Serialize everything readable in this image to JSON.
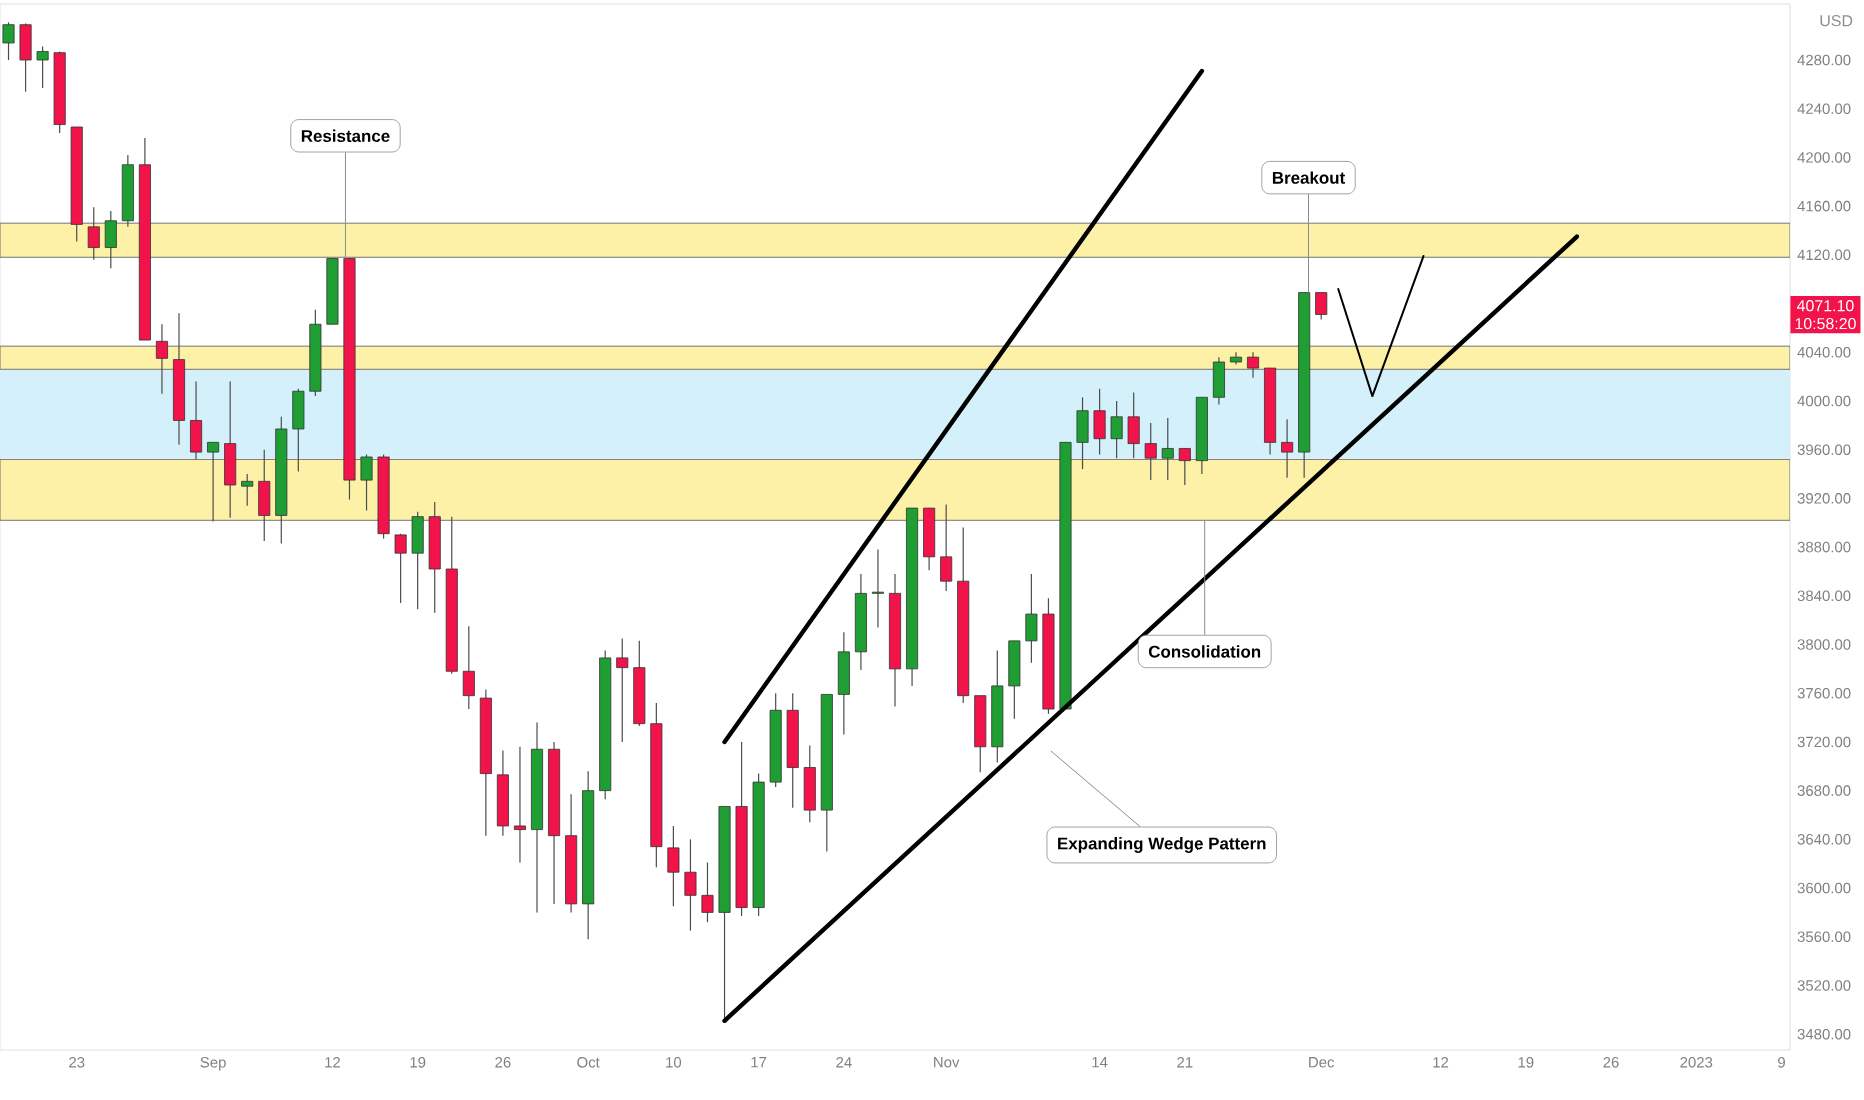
{
  "chart_data": {
    "type": "candlestick",
    "ylabel": "USD",
    "categories": [
      null,
      null,
      null,
      null,
      "23",
      null,
      null,
      null,
      null,
      null,
      null,
      null,
      "Sep",
      null,
      null,
      null,
      null,
      null,
      null,
      "12",
      null,
      null,
      null,
      null,
      "19",
      null,
      null,
      null,
      null,
      "26",
      null,
      null,
      null,
      null,
      "Oct",
      null,
      null,
      null,
      null,
      "10",
      null,
      null,
      null,
      null,
      "17",
      null,
      null,
      null,
      null,
      "24",
      null,
      null,
      null,
      null,
      null,
      "Nov",
      null,
      null,
      null,
      null,
      null,
      null,
      null,
      null,
      "14",
      null,
      null,
      null,
      null,
      "21",
      null,
      null,
      null,
      null,
      null,
      null,
      null,
      "Dec",
      null,
      null,
      null,
      null,
      null,
      null,
      "12",
      null,
      null,
      null,
      null,
      "19",
      null,
      null,
      null,
      null,
      "26",
      null,
      null,
      null,
      null,
      "2023",
      null,
      null,
      null,
      null,
      "9"
    ],
    "ohlc": [
      [
        4294,
        4311,
        4280,
        4309
      ],
      [
        4309,
        4310,
        4254,
        4280
      ],
      [
        4280,
        4291,
        4257,
        4287
      ],
      [
        4286,
        4287,
        4220,
        4227
      ],
      [
        4225,
        4225,
        4131,
        4145
      ],
      [
        4143,
        4159,
        4116,
        4126
      ],
      [
        4126,
        4156,
        4109,
        4148
      ],
      [
        4148,
        4202,
        4143,
        4194
      ],
      [
        4194,
        4216,
        4050,
        4050
      ],
      [
        4049,
        4063,
        4006,
        4035
      ],
      [
        4034,
        4072,
        3964,
        3984
      ],
      [
        3984,
        4016,
        3952,
        3958
      ],
      [
        3958,
        3966,
        3901,
        3966
      ],
      [
        3965,
        4016,
        3904,
        3931
      ],
      [
        3930,
        3940,
        3914,
        3934
      ],
      [
        3934,
        3960,
        3885,
        3906
      ],
      [
        3906,
        3987,
        3883,
        3977
      ],
      [
        3977,
        4010,
        3942,
        4008
      ],
      [
        4008,
        4075,
        4004,
        4063
      ],
      [
        4063,
        4117,
        4063,
        4117
      ],
      [
        4117,
        4117,
        3919,
        3935
      ],
      [
        3935,
        3956,
        3910,
        3954
      ],
      [
        3954,
        3956,
        3887,
        3891
      ],
      [
        3890,
        3891,
        3834,
        3875
      ],
      [
        3875,
        3909,
        3829,
        3905
      ],
      [
        3905,
        3917,
        3826,
        3862
      ],
      [
        3862,
        3905,
        3776,
        3778
      ],
      [
        3778,
        3815,
        3747,
        3758
      ],
      [
        3756,
        3763,
        3643,
        3694
      ],
      [
        3693,
        3713,
        3643,
        3651
      ],
      [
        3651,
        3716,
        3621,
        3648
      ],
      [
        3648,
        3736,
        3580,
        3714
      ],
      [
        3714,
        3720,
        3587,
        3643
      ],
      [
        3643,
        3677,
        3580,
        3587
      ],
      [
        3587,
        3696,
        3558,
        3680
      ],
      [
        3680,
        3795,
        3673,
        3789
      ],
      [
        3789,
        3805,
        3720,
        3781
      ],
      [
        3781,
        3803,
        3733,
        3735
      ],
      [
        3735,
        3752,
        3617,
        3634
      ],
      [
        3633,
        3651,
        3585,
        3613
      ],
      [
        3613,
        3640,
        3565,
        3594
      ],
      [
        3594,
        3621,
        3572,
        3580
      ],
      [
        3580,
        3667,
        3491,
        3667
      ],
      [
        3667,
        3720,
        3577,
        3584
      ],
      [
        3584,
        3694,
        3577,
        3687
      ],
      [
        3687,
        3760,
        3683,
        3746
      ],
      [
        3746,
        3760,
        3666,
        3699
      ],
      [
        3699,
        3717,
        3654,
        3664
      ],
      [
        3664,
        3759,
        3630,
        3759
      ],
      [
        3759,
        3810,
        3726,
        3794
      ],
      [
        3794,
        3858,
        3779,
        3842
      ],
      [
        3842,
        3878,
        3814,
        3843
      ],
      [
        3842,
        3858,
        3749,
        3780
      ],
      [
        3780,
        3912,
        3766,
        3912
      ],
      [
        3912,
        3912,
        3861,
        3872
      ],
      [
        3872,
        3915,
        3844,
        3852
      ],
      [
        3852,
        3896,
        3752,
        3758
      ],
      [
        3758,
        3758,
        3695,
        3716
      ],
      [
        3716,
        3795,
        3703,
        3766
      ],
      [
        3766,
        3803,
        3739,
        3803
      ],
      [
        3803,
        3858,
        3785,
        3825
      ],
      [
        3825,
        3838,
        3743,
        3747
      ],
      [
        3747,
        3966,
        3747,
        3966
      ],
      [
        3966,
        4003,
        3944,
        3992
      ],
      [
        3992,
        4010,
        3956,
        3969
      ],
      [
        3969,
        4000,
        3953,
        3987
      ],
      [
        3987,
        4007,
        3953,
        3965
      ],
      [
        3965,
        3982,
        3935,
        3953
      ],
      [
        3953,
        3986,
        3935,
        3961
      ],
      [
        3961,
        3961,
        3931,
        3951
      ],
      [
        3951,
        4003,
        3940,
        4003
      ],
      [
        4003,
        4036,
        3997,
        4032
      ],
      [
        4032,
        4040,
        4030,
        4036
      ],
      [
        4036,
        4040,
        4019,
        4027
      ],
      [
        4027,
        4027,
        3956,
        3966
      ],
      [
        3966,
        3985,
        3937,
        3958
      ],
      [
        3958,
        4089,
        3937,
        4089
      ],
      [
        4089,
        4089,
        4067,
        4071
      ],
      null,
      null,
      null,
      null,
      null,
      null,
      null,
      null,
      null,
      null,
      null,
      null,
      null,
      null,
      null,
      null,
      null,
      null,
      null,
      null,
      null,
      null,
      null,
      null,
      null,
      null,
      null
    ],
    "colors": [
      "#1f9e33",
      "#f2134b",
      "#1f9e33",
      "#f2134b",
      "#f2134b",
      "#f2134b",
      "#1f9e33",
      "#1f9e33",
      "#f2134b",
      "#f2134b",
      "#f2134b",
      "#f2134b",
      "#1f9e33",
      "#f2134b",
      "#1f9e33",
      "#f2134b",
      "#1f9e33",
      "#1f9e33",
      "#1f9e33",
      "#1f9e33",
      "#f2134b",
      "#1f9e33",
      "#f2134b",
      "#f2134b",
      "#1f9e33",
      "#f2134b",
      "#f2134b",
      "#f2134b",
      "#f2134b",
      "#f2134b",
      "#f2134b",
      "#1f9e33",
      "#f2134b",
      "#f2134b",
      "#1f9e33",
      "#1f9e33",
      "#f2134b",
      "#f2134b",
      "#f2134b",
      "#f2134b",
      "#f2134b",
      "#f2134b",
      "#1f9e33",
      "#f2134b",
      "#1f9e33",
      "#1f9e33",
      "#f2134b",
      "#f2134b",
      "#1f9e33",
      "#1f9e33",
      "#1f9e33",
      "#1f9e33",
      "#f2134b",
      "#1f9e33",
      "#f2134b",
      "#f2134b",
      "#f2134b",
      "#f2134b",
      "#1f9e33",
      "#1f9e33",
      "#1f9e33",
      "#f2134b",
      "#1f9e33",
      "#1f9e33",
      "#f2134b",
      "#1f9e33",
      "#f2134b",
      "#f2134b",
      "#1f9e33",
      "#f2134b",
      "#1f9e33",
      "#1f9e33",
      "#1f9e33",
      "#f2134b",
      "#f2134b",
      "#f2134b",
      "#1f9e33",
      "#f2134b",
      null,
      null,
      null,
      null,
      null,
      null,
      null,
      null,
      null,
      null,
      null,
      null,
      null,
      null,
      null,
      null,
      null,
      null,
      null,
      null,
      null,
      null,
      null,
      null,
      null,
      null,
      null
    ],
    "series": [
      {
        "type": "line",
        "color": "#000000",
        "values": [
          null,
          null,
          null,
          null,
          null,
          null,
          null,
          null,
          null,
          null,
          null,
          null,
          null,
          null,
          null,
          null,
          null,
          null,
          null,
          null,
          null,
          null,
          null,
          null,
          null,
          null,
          null,
          null,
          null,
          null,
          null,
          null,
          null,
          null,
          null,
          null,
          null,
          null,
          null,
          null,
          null,
          null,
          3720,
          null,
          null,
          null,
          null,
          null,
          null,
          null,
          null,
          null,
          null,
          null,
          null,
          null,
          null,
          null,
          null,
          null,
          null,
          null,
          null,
          null,
          null,
          null,
          null,
          null,
          null,
          null,
          4271,
          null,
          null,
          null,
          null,
          null,
          null,
          null,
          null,
          null,
          null,
          null,
          null,
          null,
          null,
          null,
          null,
          null,
          null,
          null,
          null,
          null,
          null,
          null,
          null,
          null,
          null,
          null,
          null,
          null,
          null,
          null,
          null,
          null,
          null
        ]
      },
      {
        "type": "line",
        "color": "#000000",
        "values": [
          null,
          null,
          null,
          null,
          null,
          null,
          null,
          null,
          null,
          null,
          null,
          null,
          null,
          null,
          null,
          null,
          null,
          null,
          null,
          null,
          null,
          null,
          null,
          null,
          null,
          null,
          null,
          null,
          null,
          null,
          null,
          null,
          null,
          null,
          null,
          null,
          null,
          null,
          null,
          null,
          null,
          null,
          3491,
          null,
          null,
          null,
          null,
          null,
          null,
          null,
          null,
          null,
          null,
          null,
          null,
          null,
          null,
          null,
          null,
          null,
          null,
          null,
          null,
          null,
          null,
          null,
          null,
          null,
          null,
          null,
          null,
          null,
          null,
          null,
          null,
          null,
          null,
          null,
          null,
          null,
          null,
          null,
          null,
          null,
          null,
          null,
          null,
          null,
          null,
          null,
          null,
          null,
          4135,
          null,
          null,
          null,
          null,
          null,
          null,
          null,
          null,
          null,
          null,
          null,
          null
        ]
      },
      {
        "type": "line",
        "color": "#000000",
        "values": [
          null,
          null,
          null,
          null,
          null,
          null,
          null,
          null,
          null,
          null,
          null,
          null,
          null,
          null,
          null,
          null,
          null,
          null,
          null,
          null,
          null,
          null,
          null,
          null,
          null,
          null,
          null,
          null,
          null,
          null,
          null,
          null,
          null,
          null,
          null,
          null,
          null,
          null,
          null,
          null,
          null,
          null,
          null,
          null,
          null,
          null,
          null,
          null,
          null,
          null,
          null,
          null,
          null,
          null,
          null,
          null,
          null,
          null,
          null,
          null,
          null,
          null,
          null,
          null,
          null,
          null,
          null,
          null,
          null,
          null,
          null,
          null,
          null,
          null,
          null,
          null,
          null,
          null,
          4092,
          null,
          4004,
          null,
          null,
          4119,
          null,
          null,
          null,
          null,
          null,
          null,
          null,
          null,
          null,
          null,
          null,
          null,
          null,
          null,
          null,
          null,
          null,
          null,
          null,
          null,
          null
        ]
      }
    ],
    "bands": [
      {
        "axis": "y",
        "from": 3953,
        "to": 4026,
        "color": "#d3f0fb"
      },
      {
        "axis": "y",
        "from": 4118,
        "to": 4146,
        "color": "#fcf1a6"
      },
      {
        "axis": "y",
        "from": 4026,
        "to": 4045,
        "color": "#fcf1a6"
      },
      {
        "axis": "y",
        "from": 3902,
        "to": 3952,
        "color": "#fcf1a6"
      }
    ],
    "annotations": [
      {
        "text": "Resistance",
        "y": 4117
      },
      {
        "text": "Breakout",
        "y": 4089
      },
      {
        "text": "Consolidation",
        "y": 3902
      },
      "Expanding Wedge Pattern",
      "4071.10",
      "10:58:20"
    ],
    "ylim": [
      3467,
      4326
    ],
    "yticks": [
      {
        "value": 3480,
        "label": "3480.00"
      },
      {
        "value": 3520,
        "label": "3520.00"
      },
      {
        "value": 3560,
        "label": "3560.00"
      },
      {
        "value": 3600,
        "label": "3600.00"
      },
      {
        "value": 3640,
        "label": "3640.00"
      },
      {
        "value": 3680,
        "label": "3680.00"
      },
      {
        "value": 3720,
        "label": "3720.00"
      },
      {
        "value": 3760,
        "label": "3760.00"
      },
      {
        "value": 3800,
        "label": "3800.00"
      },
      {
        "value": 3840,
        "label": "3840.00"
      },
      {
        "value": 3880,
        "label": "3880.00"
      },
      {
        "value": 3920,
        "label": "3920.00"
      },
      {
        "value": 3960,
        "label": "3960.00"
      },
      {
        "value": 4000,
        "label": "4000.00"
      },
      {
        "value": 4040,
        "label": "4040.00"
      },
      {
        "value": 4120,
        "label": "4120.00"
      },
      {
        "value": 4160,
        "label": "4160.00"
      },
      {
        "value": 4200,
        "label": "4200.00"
      },
      {
        "value": 4240,
        "label": "4240.00"
      },
      {
        "value": 4280,
        "label": "4280.00"
      }
    ]
  }
}
